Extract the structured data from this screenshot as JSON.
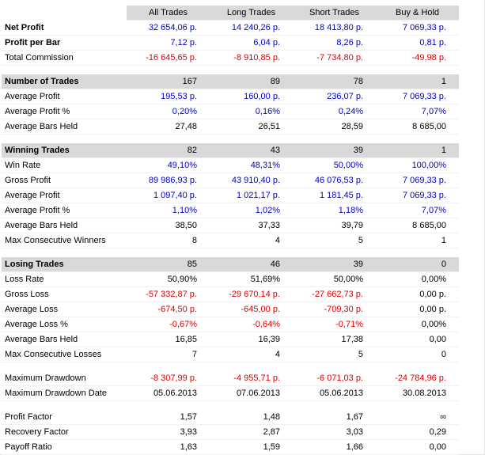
{
  "palette": {
    "positive_value": "#0000cc",
    "negative_value": "#dd0000",
    "neutral_value": "#000000",
    "section_background": "#d9d9d9"
  },
  "table": {
    "columns": [
      "All Trades",
      "Long Trades",
      "Short Trades",
      "Buy & Hold"
    ],
    "rows": [
      {
        "type": "data",
        "label": "Net Profit",
        "bold": true,
        "color": "blue",
        "values": [
          "32 654,06 p.",
          "14 240,26 p.",
          "18 413,80 p.",
          "7 069,33 p."
        ]
      },
      {
        "type": "data",
        "label": "Profit per Bar",
        "bold": true,
        "color": "blue",
        "values": [
          "7,12 p.",
          "6,04 p.",
          "8,26 p.",
          "0,81 p."
        ]
      },
      {
        "type": "data",
        "label": "Total Commission",
        "color": "red",
        "values": [
          "-16 645,65 p.",
          "-8 910,85 p.",
          "-7 734,80 p.",
          "-49,98 p."
        ]
      },
      {
        "type": "spacer"
      },
      {
        "type": "section",
        "label": "Number of Trades",
        "color": "black",
        "values": [
          "167",
          "89",
          "78",
          "1"
        ]
      },
      {
        "type": "data",
        "label": "Average Profit",
        "color": "blue",
        "values": [
          "195,53 p.",
          "160,00 p.",
          "236,07 p.",
          "7 069,33 p."
        ]
      },
      {
        "type": "data",
        "label": "Average Profit %",
        "color": "blue",
        "values": [
          "0,20%",
          "0,16%",
          "0,24%",
          "7,07%"
        ]
      },
      {
        "type": "data",
        "label": "Average Bars Held",
        "color": "black",
        "values": [
          "27,48",
          "26,51",
          "28,59",
          "8 685,00"
        ]
      },
      {
        "type": "spacer"
      },
      {
        "type": "section",
        "label": "Winning Trades",
        "color": "black",
        "values": [
          "82",
          "43",
          "39",
          "1"
        ]
      },
      {
        "type": "data",
        "label": "Win Rate",
        "color": "blue",
        "values": [
          "49,10%",
          "48,31%",
          "50,00%",
          "100,00%"
        ]
      },
      {
        "type": "data",
        "label": "Gross Profit",
        "color": "blue",
        "values": [
          "89 986,93 p.",
          "43 910,40 p.",
          "46 076,53 p.",
          "7 069,33 p."
        ]
      },
      {
        "type": "data",
        "label": "Average Profit",
        "color": "blue",
        "values": [
          "1 097,40 p.",
          "1 021,17 p.",
          "1 181,45 p.",
          "7 069,33 p."
        ]
      },
      {
        "type": "data",
        "label": "Average Profit %",
        "color": "blue",
        "values": [
          "1,10%",
          "1,02%",
          "1,18%",
          "7,07%"
        ]
      },
      {
        "type": "data",
        "label": "Average Bars Held",
        "color": "black",
        "values": [
          "38,50",
          "37,33",
          "39,79",
          "8 685,00"
        ]
      },
      {
        "type": "data",
        "label": "Max Consecutive Winners",
        "color": "black",
        "values": [
          "8",
          "4",
          "5",
          "1"
        ]
      },
      {
        "type": "spacer"
      },
      {
        "type": "section",
        "label": "Losing Trades",
        "color": "black",
        "values": [
          "85",
          "46",
          "39",
          "0"
        ]
      },
      {
        "type": "data",
        "label": "Loss Rate",
        "color": "black",
        "values": [
          "50,90%",
          "51,69%",
          "50,00%",
          "0,00%"
        ]
      },
      {
        "type": "data",
        "label": "Gross Loss",
        "colors": [
          "red",
          "red",
          "red",
          "black"
        ],
        "values": [
          "-57 332,87 p.",
          "-29 670,14 p.",
          "-27 662,73 p.",
          "0,00 p."
        ]
      },
      {
        "type": "data",
        "label": "Average Loss",
        "colors": [
          "red",
          "red",
          "red",
          "black"
        ],
        "values": [
          "-674,50 p.",
          "-645,00 p.",
          "-709,30 p.",
          "0,00 p."
        ]
      },
      {
        "type": "data",
        "label": "Average Loss %",
        "colors": [
          "red",
          "red",
          "red",
          "black"
        ],
        "values": [
          "-0,67%",
          "-0,64%",
          "-0,71%",
          "0,00%"
        ]
      },
      {
        "type": "data",
        "label": "Average Bars Held",
        "color": "black",
        "values": [
          "16,85",
          "16,39",
          "17,38",
          "0,00"
        ]
      },
      {
        "type": "data",
        "label": "Max Consecutive Losses",
        "color": "black",
        "values": [
          "7",
          "4",
          "5",
          "0"
        ]
      },
      {
        "type": "spacer"
      },
      {
        "type": "data",
        "label": "Maximum Drawdown",
        "color": "red",
        "values": [
          "-8 307,99 p.",
          "-4 955,71 p.",
          "-6 071,03 p.",
          "-24 784,96 p."
        ]
      },
      {
        "type": "data",
        "label": "Maximum Drawdown Date",
        "color": "black",
        "values": [
          "05.06.2013",
          "07.06.2013",
          "05.06.2013",
          "30.08.2013"
        ]
      },
      {
        "type": "spacer"
      },
      {
        "type": "data",
        "label": "Profit Factor",
        "color": "black",
        "values": [
          "1,57",
          "1,48",
          "1,67",
          "∞"
        ]
      },
      {
        "type": "data",
        "label": "Recovery Factor",
        "color": "black",
        "values": [
          "3,93",
          "2,87",
          "3,03",
          "0,29"
        ]
      },
      {
        "type": "data",
        "label": "Payoff Ratio",
        "color": "black",
        "values": [
          "1,63",
          "1,59",
          "1,66",
          "0,00"
        ]
      }
    ]
  }
}
